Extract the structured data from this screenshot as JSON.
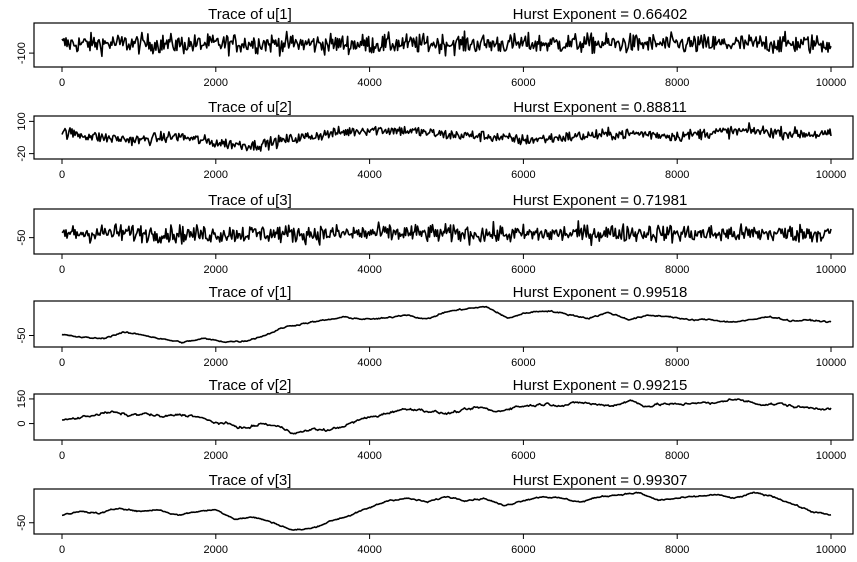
{
  "chart_data": [
    {
      "type": "line",
      "title": "Trace of u[1]",
      "annotation": "Hurst Exponent = 0.66402",
      "ylabel": "",
      "xlabel": "",
      "x_ticks": [
        0,
        2000,
        4000,
        6000,
        8000,
        10000
      ],
      "x_tick_labels": [
        "0",
        "2000",
        "4000",
        "6000",
        "8000",
        "10000"
      ],
      "xlim": [
        0,
        10000
      ],
      "y_ticks": [
        -100
      ],
      "y_tick_labels": [
        "-100"
      ],
      "ylim": [
        -160,
        30
      ],
      "n": 10000,
      "hurst": 0.66402,
      "series": [
        {
          "values": [
            -60,
            -58,
            -62,
            -57,
            -60,
            -61,
            -59,
            -60,
            -58,
            -60,
            -62,
            -59,
            -60
          ]
        }
      ]
    },
    {
      "type": "line",
      "title": "Trace of u[2]",
      "annotation": "Hurst Exponent = 0.88811",
      "ylabel": "",
      "xlabel": "",
      "x_ticks": [
        0,
        2000,
        4000,
        6000,
        8000,
        10000
      ],
      "x_tick_labels": [
        "0",
        "2000",
        "4000",
        "6000",
        "8000",
        "10000"
      ],
      "xlim": [
        0,
        10000
      ],
      "y_ticks": [
        -20,
        100
      ],
      "y_tick_labels": [
        "-20",
        "100"
      ],
      "ylim": [
        -40,
        120
      ],
      "n": 10000,
      "hurst": 0.88811,
      "series": [
        {
          "values": [
            60,
            40,
            30,
            45,
            20,
            10,
            35,
            55,
            70,
            65,
            50,
            45,
            30,
            40,
            50,
            55,
            45,
            60,
            65,
            55,
            50
          ]
        }
      ]
    },
    {
      "type": "line",
      "title": "Trace of u[3]",
      "annotation": "Hurst Exponent = 0.71981",
      "ylabel": "",
      "xlabel": "",
      "x_ticks": [
        0,
        2000,
        4000,
        6000,
        8000,
        10000
      ],
      "x_tick_labels": [
        "0",
        "2000",
        "4000",
        "6000",
        "8000",
        "10000"
      ],
      "xlim": [
        0,
        10000
      ],
      "y_ticks": [
        -50
      ],
      "y_tick_labels": [
        "-50"
      ],
      "ylim": [
        -90,
        20
      ],
      "n": 10000,
      "hurst": 0.71981,
      "series": [
        {
          "values": [
            -40,
            -38,
            -42,
            -40,
            -41,
            -39,
            -40,
            -42,
            -40,
            -38,
            -41,
            -40,
            -39
          ]
        }
      ]
    },
    {
      "type": "line",
      "title": "Trace of v[1]",
      "annotation": "Hurst Exponent = 0.99518",
      "ylabel": "",
      "xlabel": "",
      "x_ticks": [
        0,
        2000,
        4000,
        6000,
        8000,
        10000
      ],
      "x_tick_labels": [
        "0",
        "2000",
        "4000",
        "6000",
        "8000",
        "10000"
      ],
      "xlim": [
        0,
        10000
      ],
      "y_ticks": [
        -50
      ],
      "y_tick_labels": [
        "-50"
      ],
      "ylim": [
        -80,
        40
      ],
      "n": 10000,
      "hurst": 0.99518,
      "series": [
        {
          "values": [
            -48,
            -55,
            -58,
            -42,
            -48,
            -60,
            -68,
            -58,
            -66,
            -65,
            -50,
            -28,
            -18,
            -10,
            -2,
            -8,
            -5,
            5,
            -8,
            12,
            20,
            25,
            -5,
            10,
            15,
            5,
            -5,
            10,
            -8,
            2,
            0,
            -10,
            -8,
            -15,
            -10,
            0,
            -12,
            -10,
            -15
          ]
        }
      ]
    },
    {
      "type": "line",
      "title": "Trace of v[2]",
      "annotation": "Hurst Exponent = 0.99215",
      "ylabel": "",
      "xlabel": "",
      "x_ticks": [
        0,
        2000,
        4000,
        6000,
        8000,
        10000
      ],
      "x_tick_labels": [
        "0",
        "2000",
        "4000",
        "6000",
        "8000",
        "10000"
      ],
      "xlim": [
        0,
        10000
      ],
      "y_ticks": [
        0,
        150
      ],
      "y_tick_labels": [
        "0",
        "150"
      ],
      "ylim": [
        -100,
        180
      ],
      "n": 10000,
      "hurst": 0.99215,
      "series": [
        {
          "values": [
            20,
            35,
            55,
            70,
            50,
            60,
            40,
            55,
            45,
            10,
            -5,
            -30,
            0,
            -20,
            -60,
            -35,
            -40,
            -10,
            30,
            50,
            80,
            90,
            75,
            60,
            80,
            100,
            70,
            100,
            110,
            120,
            110,
            130,
            115,
            110,
            140,
            105,
            120,
            115,
            130,
            120,
            150,
            135,
            115,
            120,
            100,
            95,
            90
          ]
        }
      ]
    },
    {
      "type": "line",
      "title": "Trace of v[3]",
      "annotation": "Hurst Exponent = 0.99307",
      "ylabel": "",
      "xlabel": "",
      "x_ticks": [
        0,
        2000,
        4000,
        6000,
        8000,
        10000
      ],
      "x_tick_labels": [
        "0",
        "2000",
        "4000",
        "6000",
        "8000",
        "10000"
      ],
      "xlim": [
        0,
        10000
      ],
      "y_ticks": [
        -50
      ],
      "y_tick_labels": [
        "-50"
      ],
      "ylim": [
        -80,
        40
      ],
      "n": 10000,
      "hurst": 0.99307,
      "series": [
        {
          "values": [
            -30,
            -20,
            -25,
            -10,
            -20,
            -15,
            -30,
            -20,
            -15,
            -40,
            -35,
            -50,
            -70,
            -65,
            -45,
            -30,
            -10,
            10,
            15,
            5,
            20,
            10,
            15,
            -5,
            10,
            20,
            15,
            5,
            20,
            25,
            30,
            10,
            15,
            20,
            25,
            15,
            30,
            20,
            0,
            -20,
            -30
          ]
        }
      ]
    }
  ]
}
